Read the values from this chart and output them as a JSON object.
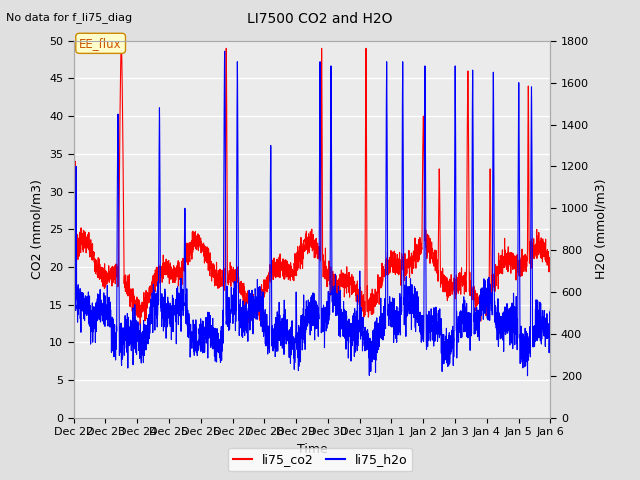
{
  "title": "LI7500 CO2 and H2O",
  "subtitle": "No data for f_li75_diag",
  "xlabel": "Time",
  "ylabel_left": "CO2 (mmol/m3)",
  "ylabel_right": "H2O (mmol/m3)",
  "ylim_left": [
    0,
    50
  ],
  "ylim_right": [
    0,
    1800
  ],
  "background_color": "#e0e0e0",
  "plot_bg_color": "#ebebeb",
  "annotation_text": "EE_flux",
  "x_tick_labels": [
    "Dec 22",
    "Dec 23",
    "Dec 24",
    "Dec 25",
    "Dec 26",
    "Dec 27",
    "Dec 28",
    "Dec 29",
    "Dec 30",
    "Dec 31",
    "Jan 1",
    "Jan 2",
    "Jan 3",
    "Jan 4",
    "Jan 5",
    "Jan 6"
  ],
  "co2_color": "red",
  "h2o_color": "blue",
  "line_width": 0.8,
  "num_points": 3000,
  "seed": 7
}
